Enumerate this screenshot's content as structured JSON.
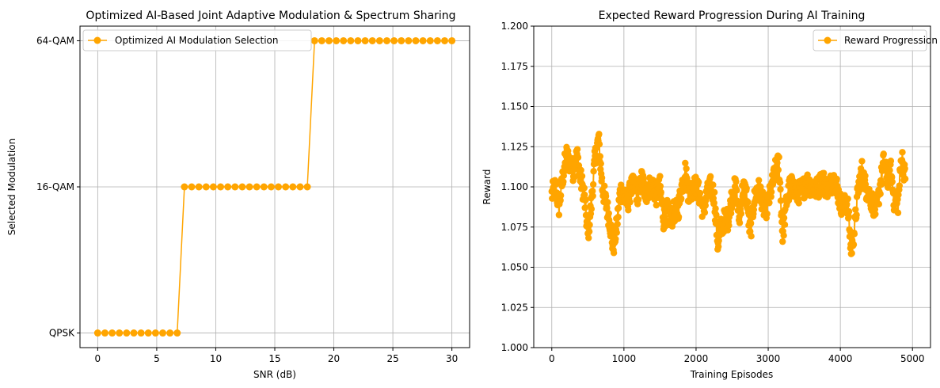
{
  "colors": {
    "series": "#FFA500",
    "grid": "#b0b0b0",
    "axis": "#000000",
    "legend_border": "#cccccc"
  },
  "chart_data": [
    {
      "type": "line",
      "title": "Optimized AI-Based Joint Adaptive Modulation & Spectrum Sharing",
      "xlabel": "SNR (dB)",
      "ylabel": "Selected Modulation",
      "xlim": [
        -1.5,
        31.5
      ],
      "ylim": [
        -0.1,
        2.1
      ],
      "x_ticks": [
        0,
        5,
        10,
        15,
        20,
        25,
        30
      ],
      "y_ticks": [
        {
          "value": 0,
          "label": "QPSK"
        },
        {
          "value": 1,
          "label": "16-QAM"
        },
        {
          "value": 2,
          "label": "64-QAM"
        }
      ],
      "grid": true,
      "legend_position": "top-left",
      "series": [
        {
          "name": "Optimized AI Modulation Selection",
          "marker": "circle",
          "x_range": {
            "start": 0,
            "stop": 30,
            "count": 50
          },
          "values": [
            0,
            0,
            0,
            0,
            0,
            0,
            0,
            0,
            0,
            0,
            0,
            0,
            1,
            1,
            1,
            1,
            1,
            1,
            1,
            1,
            1,
            1,
            1,
            1,
            1,
            1,
            1,
            1,
            1,
            1,
            2,
            2,
            2,
            2,
            2,
            2,
            2,
            2,
            2,
            2,
            2,
            2,
            2,
            2,
            2,
            2,
            2,
            2,
            2,
            2
          ]
        }
      ]
    },
    {
      "type": "line",
      "title": "Expected Reward Progression During AI Training",
      "xlabel": "Training Episodes",
      "ylabel": "Reward",
      "xlim": [
        -250,
        5250
      ],
      "ylim": [
        1.0,
        1.2
      ],
      "x_ticks": [
        0,
        1000,
        2000,
        3000,
        4000,
        5000
      ],
      "y_ticks": [
        "1.000",
        "1.025",
        "1.050",
        "1.075",
        "1.100",
        "1.125",
        "1.150",
        "1.175",
        "1.200"
      ],
      "grid": true,
      "legend_position": "top-right",
      "series": [
        {
          "name": "Reward Progression",
          "marker": "circle",
          "x_range": {
            "start": 0,
            "stop": 4900
          },
          "keypoints": [
            [
              0,
              1.095
            ],
            [
              50,
              1.1
            ],
            [
              100,
              1.088
            ],
            [
              150,
              1.105
            ],
            [
              200,
              1.12
            ],
            [
              250,
              1.115
            ],
            [
              300,
              1.11
            ],
            [
              350,
              1.12
            ],
            [
              400,
              1.105
            ],
            [
              450,
              1.095
            ],
            [
              500,
              1.07
            ],
            [
              550,
              1.09
            ],
            [
              600,
              1.118
            ],
            [
              650,
              1.13
            ],
            [
              700,
              1.1
            ],
            [
              750,
              1.09
            ],
            [
              800,
              1.08
            ],
            [
              850,
              1.062
            ],
            [
              900,
              1.075
            ],
            [
              950,
              1.098
            ],
            [
              1000,
              1.095
            ],
            [
              1050,
              1.09
            ],
            [
              1100,
              1.1
            ],
            [
              1150,
              1.1
            ],
            [
              1200,
              1.095
            ],
            [
              1250,
              1.105
            ],
            [
              1300,
              1.095
            ],
            [
              1350,
              1.1
            ],
            [
              1400,
              1.1
            ],
            [
              1450,
              1.095
            ],
            [
              1500,
              1.1
            ],
            [
              1550,
              1.08
            ],
            [
              1600,
              1.085
            ],
            [
              1650,
              1.08
            ],
            [
              1700,
              1.085
            ],
            [
              1750,
              1.085
            ],
            [
              1800,
              1.1
            ],
            [
              1850,
              1.11
            ],
            [
              1900,
              1.095
            ],
            [
              1950,
              1.1
            ],
            [
              2000,
              1.1
            ],
            [
              2050,
              1.095
            ],
            [
              2100,
              1.085
            ],
            [
              2150,
              1.095
            ],
            [
              2200,
              1.1
            ],
            [
              2250,
              1.095
            ],
            [
              2300,
              1.065
            ],
            [
              2350,
              1.075
            ],
            [
              2400,
              1.08
            ],
            [
              2450,
              1.08
            ],
            [
              2500,
              1.095
            ],
            [
              2550,
              1.1
            ],
            [
              2600,
              1.08
            ],
            [
              2650,
              1.1
            ],
            [
              2700,
              1.095
            ],
            [
              2750,
              1.07
            ],
            [
              2800,
              1.09
            ],
            [
              2850,
              1.1
            ],
            [
              2900,
              1.095
            ],
            [
              2950,
              1.085
            ],
            [
              3000,
              1.09
            ],
            [
              3050,
              1.1
            ],
            [
              3100,
              1.11
            ],
            [
              3150,
              1.115
            ],
            [
              3200,
              1.07
            ],
            [
              3250,
              1.09
            ],
            [
              3300,
              1.1
            ],
            [
              3350,
              1.1
            ],
            [
              3400,
              1.095
            ],
            [
              3450,
              1.098
            ],
            [
              3500,
              1.1
            ],
            [
              3550,
              1.103
            ],
            [
              3600,
              1.1
            ],
            [
              3650,
              1.098
            ],
            [
              3700,
              1.1
            ],
            [
              3750,
              1.105
            ],
            [
              3800,
              1.1
            ],
            [
              3850,
              1.1
            ],
            [
              3900,
              1.105
            ],
            [
              3950,
              1.1
            ],
            [
              4000,
              1.09
            ],
            [
              4050,
              1.088
            ],
            [
              4100,
              1.09
            ],
            [
              4150,
              1.06
            ],
            [
              4200,
              1.075
            ],
            [
              4250,
              1.1
            ],
            [
              4300,
              1.11
            ],
            [
              4350,
              1.1
            ],
            [
              4400,
              1.095
            ],
            [
              4450,
              1.09
            ],
            [
              4500,
              1.085
            ],
            [
              4550,
              1.1
            ],
            [
              4600,
              1.115
            ],
            [
              4650,
              1.105
            ],
            [
              4700,
              1.11
            ],
            [
              4750,
              1.09
            ],
            [
              4800,
              1.09
            ],
            [
              4850,
              1.12
            ],
            [
              4900,
              1.105
            ]
          ]
        }
      ]
    }
  ]
}
